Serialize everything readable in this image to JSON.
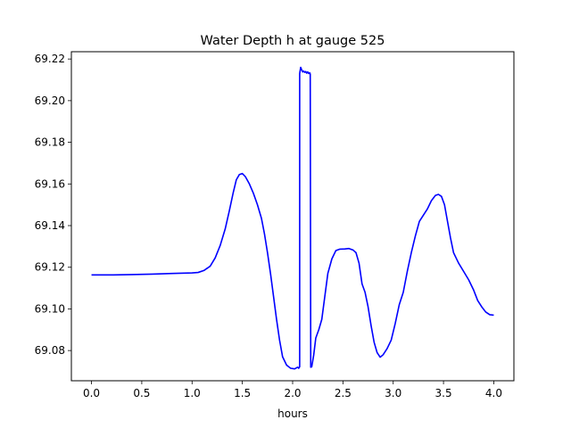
{
  "chart_data": {
    "type": "line",
    "title": "Water Depth h at gauge 525",
    "xlabel": "hours",
    "ylabel": "",
    "xlim": [
      -0.2,
      4.2
    ],
    "ylim": [
      69.0655,
      69.2235
    ],
    "xticks": [
      {
        "value": 0.0,
        "label": "0.0"
      },
      {
        "value": 0.5,
        "label": "0.5"
      },
      {
        "value": 1.0,
        "label": "1.0"
      },
      {
        "value": 1.5,
        "label": "1.5"
      },
      {
        "value": 2.0,
        "label": "2.0"
      },
      {
        "value": 2.5,
        "label": "2.5"
      },
      {
        "value": 3.0,
        "label": "3.0"
      },
      {
        "value": 3.5,
        "label": "3.5"
      },
      {
        "value": 4.0,
        "label": "4.0"
      }
    ],
    "yticks": [
      {
        "value": 69.08,
        "label": "69.08"
      },
      {
        "value": 69.1,
        "label": "69.10"
      },
      {
        "value": 69.12,
        "label": "69.12"
      },
      {
        "value": 69.14,
        "label": "69.14"
      },
      {
        "value": 69.16,
        "label": "69.16"
      },
      {
        "value": 69.18,
        "label": "69.18"
      },
      {
        "value": 69.2,
        "label": "69.20"
      },
      {
        "value": 69.22,
        "label": "69.22"
      }
    ],
    "grid": false,
    "legend": "none",
    "series": [
      {
        "color": "#0000ff",
        "points": [
          [
            0.0,
            69.1163
          ],
          [
            0.2,
            69.1163
          ],
          [
            0.4,
            69.1165
          ],
          [
            0.6,
            69.1167
          ],
          [
            0.8,
            69.117
          ],
          [
            1.0,
            69.1173
          ],
          [
            1.06,
            69.1175
          ],
          [
            1.12,
            69.1185
          ],
          [
            1.18,
            69.1205
          ],
          [
            1.23,
            69.1245
          ],
          [
            1.28,
            69.1305
          ],
          [
            1.33,
            69.1385
          ],
          [
            1.37,
            69.147
          ],
          [
            1.41,
            69.156
          ],
          [
            1.44,
            69.162
          ],
          [
            1.47,
            69.1645
          ],
          [
            1.5,
            69.165
          ],
          [
            1.53,
            69.1635
          ],
          [
            1.57,
            69.16
          ],
          [
            1.61,
            69.1555
          ],
          [
            1.65,
            69.15
          ],
          [
            1.69,
            69.1435
          ],
          [
            1.72,
            69.136
          ],
          [
            1.75,
            69.127
          ],
          [
            1.78,
            69.117
          ],
          [
            1.81,
            69.106
          ],
          [
            1.84,
            69.095
          ],
          [
            1.87,
            69.085
          ],
          [
            1.9,
            69.077
          ],
          [
            1.94,
            69.073
          ],
          [
            1.98,
            69.0715
          ],
          [
            2.02,
            69.0712
          ],
          [
            2.05,
            69.072
          ],
          [
            2.06,
            69.0715
          ],
          [
            2.07,
            69.0722
          ],
          [
            2.07,
            69.213
          ],
          [
            2.08,
            69.216
          ],
          [
            2.09,
            69.2148
          ],
          [
            2.1,
            69.2138
          ],
          [
            2.11,
            69.2142
          ],
          [
            2.12,
            69.2136
          ],
          [
            2.13,
            69.214
          ],
          [
            2.14,
            69.2132
          ],
          [
            2.15,
            69.2138
          ],
          [
            2.16,
            69.213
          ],
          [
            2.17,
            69.2134
          ],
          [
            2.175,
            69.2128
          ],
          [
            2.18,
            69.072
          ],
          [
            2.19,
            69.0722
          ],
          [
            2.21,
            69.078
          ],
          [
            2.23,
            69.086
          ],
          [
            2.26,
            69.09
          ],
          [
            2.29,
            69.095
          ],
          [
            2.32,
            69.106
          ],
          [
            2.35,
            69.117
          ],
          [
            2.39,
            69.124
          ],
          [
            2.43,
            69.128
          ],
          [
            2.47,
            69.1287
          ],
          [
            2.52,
            69.1288
          ],
          [
            2.56,
            69.129
          ],
          [
            2.6,
            69.1283
          ],
          [
            2.63,
            69.127
          ],
          [
            2.66,
            69.122
          ],
          [
            2.69,
            69.112
          ],
          [
            2.72,
            69.108
          ],
          [
            2.75,
            69.101
          ],
          [
            2.78,
            69.092
          ],
          [
            2.81,
            69.084
          ],
          [
            2.84,
            69.079
          ],
          [
            2.87,
            69.0768
          ],
          [
            2.9,
            69.078
          ],
          [
            2.94,
            69.081
          ],
          [
            2.98,
            69.085
          ],
          [
            3.02,
            69.093
          ],
          [
            3.06,
            69.102
          ],
          [
            3.1,
            69.108
          ],
          [
            3.14,
            69.118
          ],
          [
            3.18,
            69.127
          ],
          [
            3.22,
            69.135
          ],
          [
            3.26,
            69.142
          ],
          [
            3.3,
            69.145
          ],
          [
            3.34,
            69.148
          ],
          [
            3.38,
            69.152
          ],
          [
            3.42,
            69.1545
          ],
          [
            3.45,
            69.155
          ],
          [
            3.48,
            69.154
          ],
          [
            3.51,
            69.15
          ],
          [
            3.54,
            69.142
          ],
          [
            3.57,
            69.134
          ],
          [
            3.6,
            69.127
          ],
          [
            3.65,
            69.122
          ],
          [
            3.7,
            69.118
          ],
          [
            3.75,
            69.114
          ],
          [
            3.8,
            69.109
          ],
          [
            3.84,
            69.104
          ],
          [
            3.88,
            69.101
          ],
          [
            3.92,
            69.0985
          ],
          [
            3.96,
            69.0972
          ],
          [
            4.0,
            69.097
          ]
        ]
      }
    ]
  }
}
